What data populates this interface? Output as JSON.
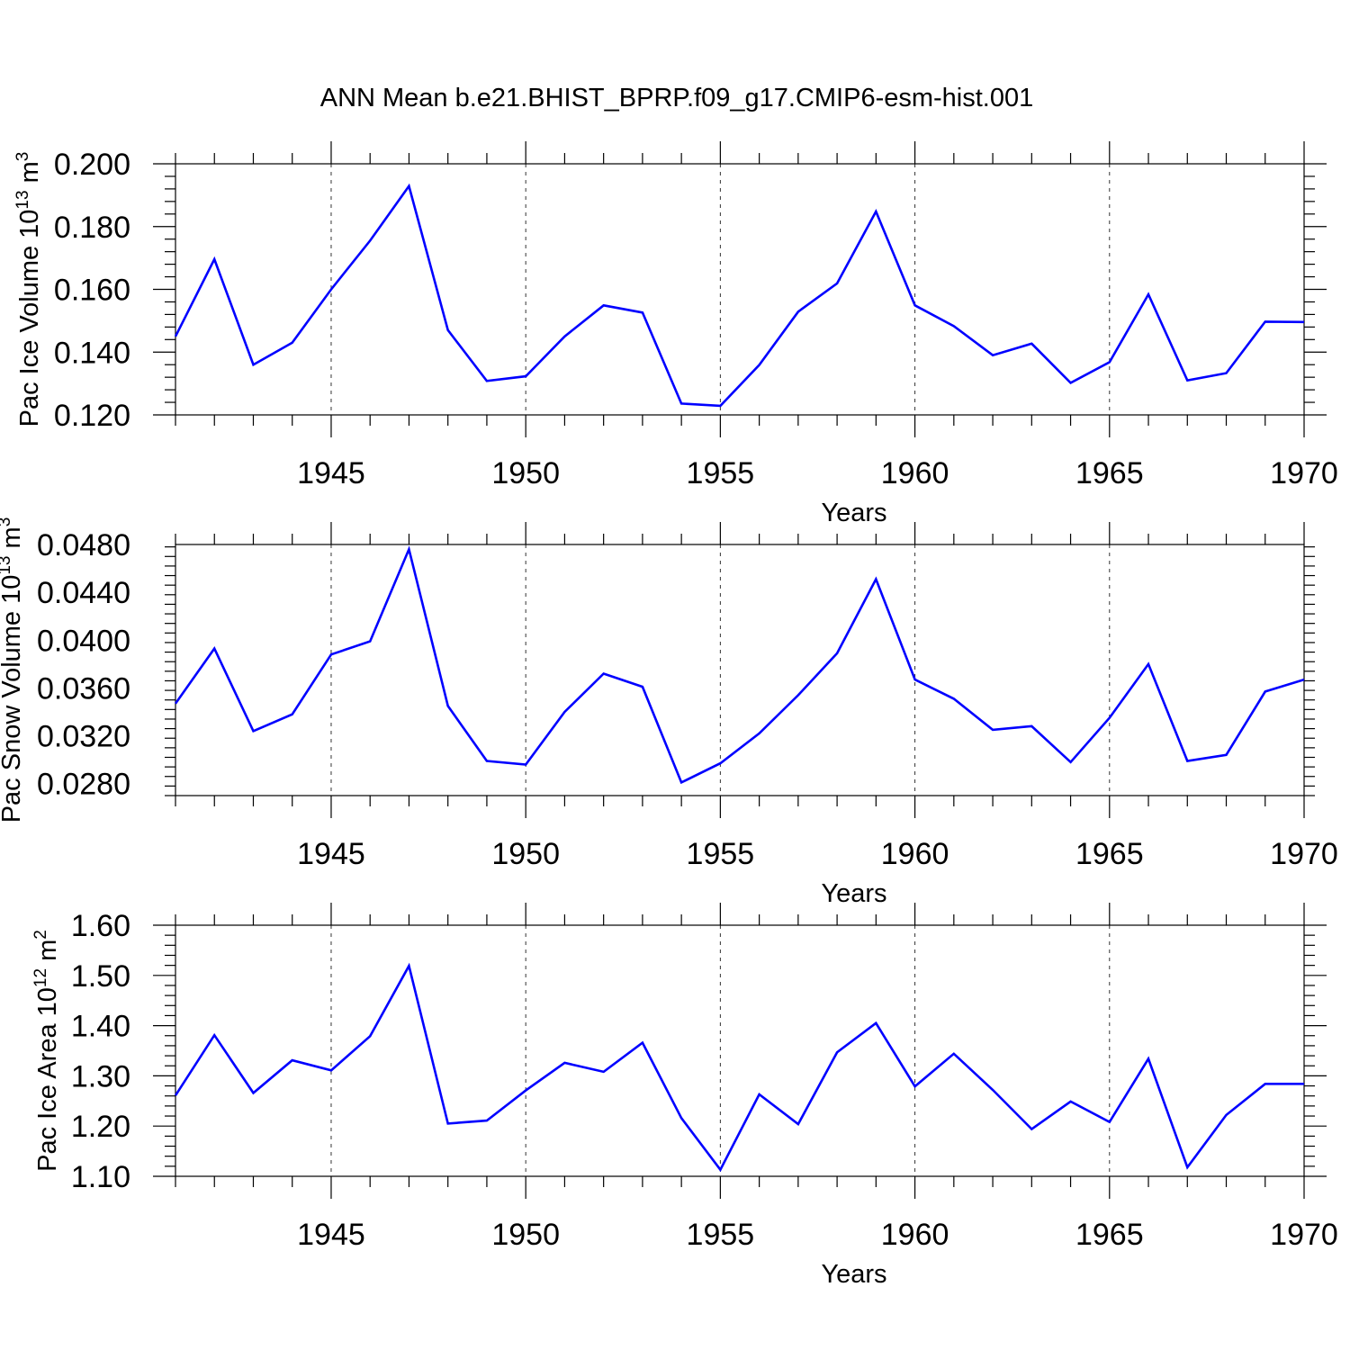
{
  "title": "ANN Mean b.e21.BHIST_BPRP.f09_g17.CMIP6-esm-hist.001",
  "colors": {
    "line": "#0000ff"
  },
  "chart_data": [
    {
      "type": "line",
      "id": "ice-volume",
      "ylabel_main": "Pac Ice Volume 10",
      "ylabel_exp": "13",
      "ylabel_unit": " m",
      "ylabel_unit_exp": "3",
      "xlabel": "Years",
      "xlim": [
        1941,
        1970
      ],
      "ylim": [
        0.12,
        0.2
      ],
      "yticks": [
        "0.120",
        "0.140",
        "0.160",
        "0.180",
        "0.200"
      ],
      "ytick_values": [
        0.12,
        0.14,
        0.16,
        0.18,
        0.2
      ],
      "xticks": [
        "1945",
        "1950",
        "1955",
        "1960",
        "1965",
        "1970"
      ],
      "xtick_values": [
        1945,
        1950,
        1955,
        1960,
        1965,
        1970
      ],
      "x": [
        1941,
        1942,
        1943,
        1944,
        1945,
        1946,
        1947,
        1948,
        1949,
        1950,
        1951,
        1952,
        1953,
        1954,
        1955,
        1956,
        1957,
        1958,
        1959,
        1960,
        1961,
        1962,
        1963,
        1964,
        1965,
        1966,
        1967,
        1968,
        1969,
        1970
      ],
      "values": [
        0.145,
        0.1696,
        0.136,
        0.143,
        0.16,
        0.1755,
        0.1929,
        0.147,
        0.1308,
        0.1323,
        0.145,
        0.1549,
        0.1526,
        0.1236,
        0.1229,
        0.1359,
        0.1529,
        0.1619,
        0.1848,
        0.1549,
        0.1483,
        0.139,
        0.1427,
        0.1302,
        0.1368,
        0.1584,
        0.131,
        0.1333,
        0.1497,
        0.1496
      ]
    },
    {
      "type": "line",
      "id": "snow-volume",
      "ylabel_main": "Pac Snow Volume 10",
      "ylabel_exp": "13",
      "ylabel_unit": " m",
      "ylabel_unit_exp": "3",
      "xlabel": "Years",
      "xlim": [
        1941,
        1970
      ],
      "ylim": [
        0.027,
        0.048
      ],
      "yticks": [
        "0.0280",
        "0.0320",
        "0.0360",
        "0.0400",
        "0.0440",
        "0.0480"
      ],
      "ytick_values": [
        0.028,
        0.032,
        0.036,
        0.04,
        0.044,
        0.048
      ],
      "xticks": [
        "1945",
        "1950",
        "1955",
        "1960",
        "1965",
        "1970"
      ],
      "xtick_values": [
        1945,
        1950,
        1955,
        1960,
        1965,
        1970
      ],
      "x": [
        1941,
        1942,
        1943,
        1944,
        1945,
        1946,
        1947,
        1948,
        1949,
        1950,
        1951,
        1952,
        1953,
        1954,
        1955,
        1956,
        1957,
        1958,
        1959,
        1960,
        1961,
        1962,
        1963,
        1964,
        1965,
        1966,
        1967,
        1968,
        1969,
        1970
      ],
      "values": [
        0.0347,
        0.0393,
        0.0324,
        0.0338,
        0.0388,
        0.0399,
        0.0476,
        0.0345,
        0.0299,
        0.0296,
        0.034,
        0.0372,
        0.0361,
        0.0281,
        0.0297,
        0.0322,
        0.0354,
        0.0389,
        0.0451,
        0.0367,
        0.0351,
        0.0325,
        0.0328,
        0.0298,
        0.0335,
        0.038,
        0.0299,
        0.0304,
        0.0357,
        0.0367
      ]
    },
    {
      "type": "line",
      "id": "ice-area",
      "ylabel_main": "Pac Ice Area 10",
      "ylabel_exp": "12",
      "ylabel_unit": " m",
      "ylabel_unit_exp": "2",
      "xlabel": "Years",
      "xlim": [
        1941,
        1970
      ],
      "ylim": [
        1.1,
        1.6
      ],
      "yticks": [
        "1.10",
        "1.20",
        "1.30",
        "1.40",
        "1.50",
        "1.60"
      ],
      "ytick_values": [
        1.1,
        1.2,
        1.3,
        1.4,
        1.5,
        1.6
      ],
      "xticks": [
        "1945",
        "1950",
        "1955",
        "1960",
        "1965",
        "1970"
      ],
      "xtick_values": [
        1945,
        1950,
        1955,
        1960,
        1965,
        1970
      ],
      "x": [
        1941,
        1942,
        1943,
        1944,
        1945,
        1946,
        1947,
        1948,
        1949,
        1950,
        1951,
        1952,
        1953,
        1954,
        1955,
        1956,
        1957,
        1958,
        1959,
        1960,
        1961,
        1962,
        1963,
        1964,
        1965,
        1966,
        1967,
        1968,
        1969,
        1970
      ],
      "values": [
        1.261,
        1.381,
        1.266,
        1.331,
        1.311,
        1.379,
        1.519,
        1.205,
        1.211,
        1.271,
        1.326,
        1.308,
        1.366,
        1.216,
        1.113,
        1.263,
        1.204,
        1.347,
        1.405,
        1.279,
        1.344,
        1.272,
        1.194,
        1.249,
        1.208,
        1.334,
        1.118,
        1.222,
        1.284,
        1.284
      ]
    }
  ]
}
